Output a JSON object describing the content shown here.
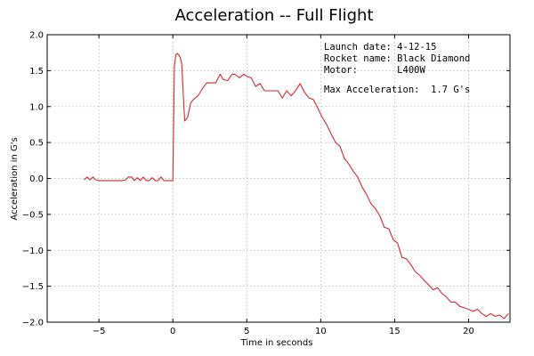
{
  "colors": {
    "series": "#d62728",
    "frame": "#000000",
    "grid": "#b0b0b0"
  },
  "chart_data": {
    "type": "line",
    "title": "Acceleration -- Full Flight",
    "xlabel": "Time in seconds",
    "ylabel": "Acceleration in G's",
    "xlim": [
      -8.5,
      22.8
    ],
    "ylim": [
      -2.0,
      2.0
    ],
    "xticks": [
      -5,
      0,
      5,
      10,
      15,
      20
    ],
    "yticks": [
      -2.0,
      -1.5,
      -1.0,
      -0.5,
      0.0,
      0.5,
      1.0,
      1.5,
      2.0
    ],
    "xtick_labels": [
      "−5",
      "0",
      "5",
      "10",
      "15",
      "20"
    ],
    "ytick_labels": [
      "−2.0",
      "−1.5",
      "−1.0",
      "−0.5",
      "0.0",
      "0.5",
      "1.0",
      "1.5",
      "2.0"
    ],
    "grid": true,
    "annotations": [
      "Launch date: 4-12-15",
      "Rocket name: Black Diamond",
      "Motor:       L400W",
      "",
      "Max Acceleration:  1.7 G's"
    ],
    "series": [
      {
        "x": [
          -6.0,
          -5.8,
          -5.6,
          -5.4,
          -5.2,
          -5.0,
          -4.8,
          -4.6,
          -4.4,
          -4.2,
          -4.0,
          -3.8,
          -3.6,
          -3.4,
          -3.2,
          -3.0,
          -2.8,
          -2.6,
          -2.4,
          -2.2,
          -2.0,
          -1.8,
          -1.6,
          -1.4,
          -1.2,
          -1.0,
          -0.8,
          -0.6,
          -0.4,
          -0.2,
          0.0,
          0.1,
          0.2,
          0.3,
          0.4,
          0.5,
          0.6,
          0.7,
          0.8,
          1.0,
          1.2,
          1.4,
          1.7,
          2.0,
          2.3,
          2.6,
          2.9,
          3.2,
          3.4,
          3.7,
          4.0,
          4.2,
          4.5,
          4.8,
          5.0,
          5.3,
          5.6,
          5.9,
          6.2,
          6.5,
          6.8,
          7.1,
          7.4,
          7.7,
          8.0,
          8.3,
          8.6,
          8.9,
          9.2,
          9.5,
          9.8,
          10.1,
          10.4,
          10.7,
          11.0,
          11.3,
          11.6,
          11.9,
          12.2,
          12.5,
          12.8,
          13.1,
          13.4,
          13.7,
          14.0,
          14.3,
          14.6,
          14.9,
          15.2,
          15.5,
          15.8,
          16.1,
          16.4,
          16.7,
          17.0,
          17.3,
          17.6,
          17.9,
          18.2,
          18.5,
          18.8,
          19.1,
          19.4,
          19.7,
          20.0,
          20.3,
          20.6,
          20.9,
          21.2,
          21.5,
          21.8,
          22.1,
          22.4,
          22.7
        ],
        "values": [
          -0.02,
          0.02,
          -0.02,
          0.02,
          -0.02,
          -0.03,
          -0.03,
          -0.03,
          -0.03,
          -0.03,
          -0.03,
          -0.03,
          -0.03,
          -0.03,
          -0.02,
          0.02,
          0.02,
          -0.03,
          0.01,
          -0.03,
          0.02,
          -0.03,
          -0.03,
          0.01,
          -0.03,
          -0.03,
          0.02,
          -0.03,
          -0.03,
          -0.03,
          -0.03,
          1.55,
          1.72,
          1.74,
          1.72,
          1.68,
          1.6,
          1.2,
          0.8,
          0.85,
          1.05,
          1.1,
          1.15,
          1.25,
          1.33,
          1.33,
          1.33,
          1.45,
          1.38,
          1.36,
          1.45,
          1.45,
          1.4,
          1.45,
          1.42,
          1.4,
          1.28,
          1.32,
          1.22,
          1.22,
          1.22,
          1.22,
          1.12,
          1.22,
          1.15,
          1.22,
          1.32,
          1.2,
          1.12,
          1.1,
          0.98,
          0.85,
          0.75,
          0.62,
          0.5,
          0.45,
          0.28,
          0.2,
          0.1,
          0.02,
          -0.12,
          -0.22,
          -0.35,
          -0.42,
          -0.52,
          -0.68,
          -0.7,
          -0.85,
          -0.9,
          -1.1,
          -1.12,
          -1.2,
          -1.3,
          -1.35,
          -1.42,
          -1.48,
          -1.55,
          -1.52,
          -1.6,
          -1.65,
          -1.72,
          -1.72,
          -1.78,
          -1.8,
          -1.82,
          -1.85,
          -1.82,
          -1.88,
          -1.92,
          -1.88,
          -1.92,
          -1.9,
          -1.95,
          -1.88
        ]
      }
    ]
  }
}
